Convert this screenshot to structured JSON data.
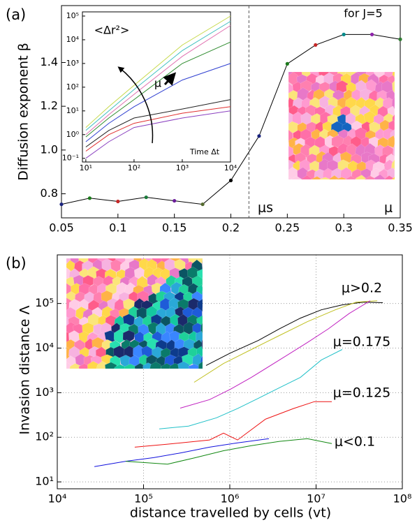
{
  "chart_data": [
    {
      "type": "line",
      "panel_label": "(a)",
      "y_label": "Diffusion exponent β",
      "annotations": [
        "for J=5",
        "μs",
        "μ"
      ],
      "x": [
        0.05,
        0.075,
        0.1,
        0.125,
        0.15,
        0.175,
        0.2,
        0.225,
        0.25,
        0.275,
        0.3,
        0.325,
        0.35
      ],
      "values": [
        0.752,
        0.78,
        0.765,
        0.784,
        0.768,
        0.752,
        0.861,
        1.064,
        1.394,
        1.48,
        1.528,
        1.528,
        1.506
      ],
      "color": "#000000",
      "point_colors": [
        "#1a237e",
        "#1b7a1b",
        "#c62828",
        "#1b7a3b",
        "#6a1b9a",
        "#556b2f",
        "#000000",
        "#1a237e",
        "#1b7a1b",
        "#c62828",
        "#008b8b",
        "#8e24aa",
        "#2e7d32"
      ],
      "threshold_x": 0.216,
      "xlim": [
        0.05,
        0.35
      ],
      "xticks": [
        0.05,
        0.1,
        0.15,
        0.2,
        0.25,
        0.3,
        0.35
      ],
      "ylim": [
        0.69,
        1.66
      ],
      "yticks": [
        0.8,
        {
          "value": 1,
          "label": "1.0"
        },
        1.2,
        1.4
      ],
      "grid": false
    },
    {
      "type": "line",
      "annotations": [
        "<Δr²>",
        "Time Δt",
        "μ"
      ],
      "x_scale": "log",
      "y_scale": "log",
      "x": [
        10,
        30,
        100,
        1000,
        10000
      ],
      "series": [
        {
          "color": "#c6d94a",
          "values": [
            2,
            15,
            120,
            6000,
            100000
          ]
        },
        {
          "color": "#40c0c0",
          "values": [
            1.5,
            10,
            80,
            3500,
            60000
          ]
        },
        {
          "color": "#e070b0",
          "values": [
            1,
            7,
            50,
            2000,
            40000
          ]
        },
        {
          "color": "#2e8b2e",
          "values": [
            0.8,
            5,
            30,
            1000,
            8000
          ]
        },
        {
          "color": "#2f3fd0",
          "values": [
            0.5,
            3,
            15,
            200,
            1000
          ]
        },
        {
          "color": "#222222",
          "values": [
            0.3,
            1.5,
            5,
            12,
            30
          ]
        },
        {
          "color": "#e03030",
          "values": [
            0.2,
            1,
            3,
            8,
            15
          ]
        },
        {
          "color": "#8a40c0",
          "values": [
            0.1,
            0.5,
            2,
            5,
            10
          ]
        }
      ],
      "xlim": [
        8.5,
        10000
      ],
      "xticks": [
        {
          "value": 10,
          "label": "10¹"
        },
        {
          "value": 100,
          "label": "10²"
        },
        {
          "value": 1000,
          "label": "10³"
        },
        {
          "value": 10000,
          "label": "10⁴"
        }
      ],
      "ylim": [
        0.07,
        150000
      ],
      "yticks": [
        {
          "value": 0.1,
          "label": "10⁻¹"
        },
        {
          "value": 1,
          "label": "10⁰"
        },
        {
          "value": 10,
          "label": "10¹"
        },
        {
          "value": 100,
          "label": "10²"
        },
        {
          "value": 1000,
          "label": "10³"
        },
        {
          "value": 10000,
          "label": "10⁴"
        },
        {
          "value": 100000,
          "label": "10⁵"
        }
      ],
      "grid": false
    },
    {
      "type": "line",
      "panel_label": "(b)",
      "x_label": "distance travelled by cells (vt)",
      "y_label": "Invasion distance Λ",
      "annotations": [
        "μ>0.2",
        "μ=0.175",
        "μ=0.125",
        "μ<0.1"
      ],
      "x_scale": "log",
      "y_scale": "log",
      "series": [
        {
          "color": "#000000",
          "x": [
            531000,
            1020000,
            2150000,
            3760000,
            6580000,
            11500000,
            20100000,
            35200000,
            59300000
          ],
          "values": [
            4070,
            7800,
            14900,
            27000,
            47000,
            72000,
            93000,
            107000,
            104000
          ]
        },
        {
          "color": "#c0c020",
          "x": [
            386000,
            845000,
            1780000,
            3760000,
            7920000,
            16700000,
            29200000,
            51200000
          ],
          "values": [
            1710,
            4500,
            9300,
            19100,
            39000,
            72000,
            107000,
            115000
          ]
        },
        {
          "color": "#c020c0",
          "x": [
            266000,
            582000,
            1020000,
            1780000,
            3760000,
            7920000,
            13900000,
            24300000,
            42500000
          ],
          "values": [
            450,
            700,
            1200,
            2210,
            5400,
            13300,
            27000,
            60000,
            115000
          ]
        },
        {
          "color": "#20c0c8",
          "x": [
            152000,
            333000,
            702000,
            1230000,
            2150000,
            3760000,
            6580000,
            11500000,
            20100000
          ],
          "values": [
            154,
            178,
            274,
            440,
            750,
            1290,
            2210,
            5400,
            9300
          ]
        },
        {
          "color": "#ee1111",
          "x": [
            79000,
            190000,
            582000,
            845000,
            1230000,
            2590000,
            5460000,
            9550000,
            15200000
          ],
          "values": [
            60,
            70,
            87,
            124,
            87,
            255,
            440,
            630,
            630
          ]
        },
        {
          "color": "#1010dd",
          "x": [
            26900,
            62000,
            131000,
            276000,
            582000,
            1230000,
            2840000
          ],
          "values": [
            22,
            29,
            35,
            45,
            60,
            75,
            93
          ]
        },
        {
          "color": "#118811",
          "x": [
            62000,
            190000,
            401000,
            845000,
            1780000,
            3760000,
            7920000,
            15200000
          ],
          "values": [
            29,
            25,
            35,
            50,
            65,
            81,
            93,
            72
          ]
        }
      ],
      "xlim": [
        10000,
        100000000
      ],
      "xticks": [
        {
          "value": 10000,
          "label": "10⁴"
        },
        {
          "value": 100000,
          "label": "10⁵"
        },
        {
          "value": 1000000,
          "label": "10⁶"
        },
        {
          "value": 10000000,
          "label": "10⁷"
        },
        {
          "value": 100000000,
          "label": "10⁸"
        }
      ],
      "ylim": [
        7,
        1230000
      ],
      "yticks": [
        {
          "value": 10,
          "label": "10¹"
        },
        {
          "value": 100,
          "label": "10²"
        },
        {
          "value": 1000,
          "label": "10³"
        },
        {
          "value": 10000,
          "label": "10⁴"
        },
        {
          "value": 100000,
          "label": "10⁵"
        }
      ],
      "grid": true
    }
  ]
}
